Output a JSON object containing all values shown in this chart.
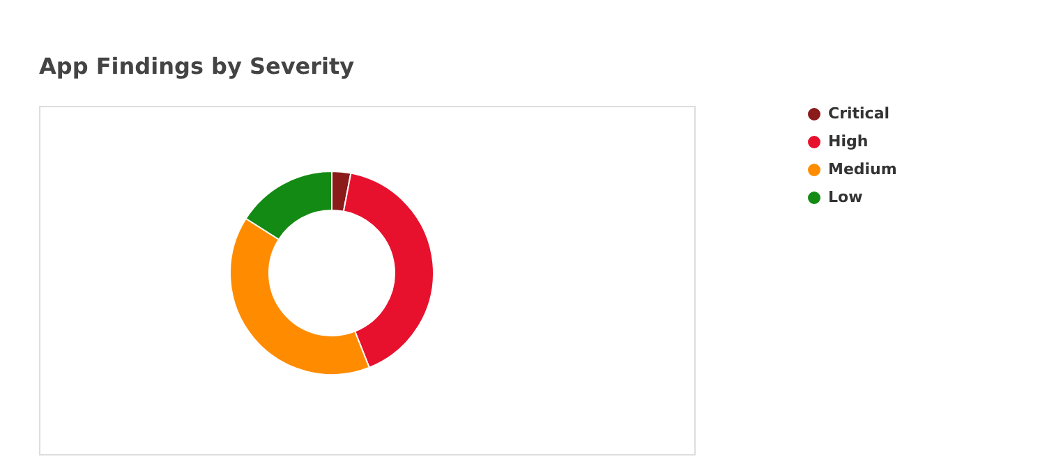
{
  "chart_data": {
    "type": "donut",
    "title": "App Findings by Severity",
    "categories": [
      "Critical",
      "High",
      "Medium",
      "Low"
    ],
    "values": [
      3,
      41,
      40,
      16
    ],
    "colors": [
      "#8b1a1a",
      "#e8112d",
      "#ff8c00",
      "#138a14"
    ],
    "legend": "right"
  }
}
